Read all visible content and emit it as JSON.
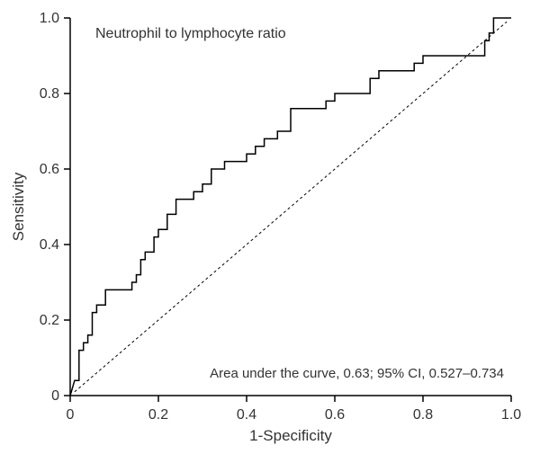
{
  "chart": {
    "type": "line",
    "title_label": "Neutrophil to lymphocyte ratio",
    "annotation_text": "Area under the curve, 0.63; 95% CI, 0.527–0.734",
    "xlabel": "1-Specificity",
    "ylabel": "Sensitivity",
    "xlim": [
      0,
      1.0
    ],
    "ylim": [
      0,
      1.0
    ],
    "xticks": [
      0,
      0.2,
      0.4,
      0.6,
      0.8,
      1.0
    ],
    "yticks": [
      0,
      0.2,
      0.4,
      0.6,
      0.8,
      1.0
    ],
    "xtick_labels": [
      "0",
      "0.2",
      "0.4",
      "0.6",
      "0.8",
      "1.0"
    ],
    "ytick_labels": [
      "0",
      "0.2",
      "0.4",
      "0.6",
      "0.8",
      "1.0"
    ],
    "tick_fontsize": 16,
    "label_fontsize": 17,
    "title_fontsize": 16,
    "annotation_fontsize": 15,
    "background_color": "#ffffff",
    "axis_color": "#000000",
    "roc_color": "#000000",
    "roc_width": 1.5,
    "ref_dash": "3,3",
    "reference_line": {
      "start": [
        0.01,
        0.01
      ],
      "end": [
        0.99,
        0.99
      ]
    },
    "roc_points": [
      [
        0.0,
        0.0
      ],
      [
        0.01,
        0.04
      ],
      [
        0.02,
        0.04
      ],
      [
        0.02,
        0.12
      ],
      [
        0.03,
        0.12
      ],
      [
        0.03,
        0.14
      ],
      [
        0.04,
        0.14
      ],
      [
        0.04,
        0.16
      ],
      [
        0.05,
        0.16
      ],
      [
        0.05,
        0.22
      ],
      [
        0.06,
        0.22
      ],
      [
        0.06,
        0.24
      ],
      [
        0.08,
        0.24
      ],
      [
        0.08,
        0.28
      ],
      [
        0.14,
        0.28
      ],
      [
        0.14,
        0.3
      ],
      [
        0.15,
        0.3
      ],
      [
        0.15,
        0.32
      ],
      [
        0.16,
        0.32
      ],
      [
        0.16,
        0.36
      ],
      [
        0.17,
        0.36
      ],
      [
        0.17,
        0.38
      ],
      [
        0.19,
        0.38
      ],
      [
        0.19,
        0.42
      ],
      [
        0.2,
        0.42
      ],
      [
        0.2,
        0.44
      ],
      [
        0.22,
        0.44
      ],
      [
        0.22,
        0.48
      ],
      [
        0.24,
        0.48
      ],
      [
        0.24,
        0.52
      ],
      [
        0.28,
        0.52
      ],
      [
        0.28,
        0.54
      ],
      [
        0.3,
        0.54
      ],
      [
        0.3,
        0.56
      ],
      [
        0.32,
        0.56
      ],
      [
        0.32,
        0.6
      ],
      [
        0.35,
        0.6
      ],
      [
        0.35,
        0.62
      ],
      [
        0.4,
        0.62
      ],
      [
        0.4,
        0.64
      ],
      [
        0.42,
        0.64
      ],
      [
        0.42,
        0.66
      ],
      [
        0.44,
        0.66
      ],
      [
        0.44,
        0.68
      ],
      [
        0.47,
        0.68
      ],
      [
        0.47,
        0.7
      ],
      [
        0.5,
        0.7
      ],
      [
        0.5,
        0.76
      ],
      [
        0.58,
        0.76
      ],
      [
        0.58,
        0.78
      ],
      [
        0.6,
        0.78
      ],
      [
        0.6,
        0.8
      ],
      [
        0.68,
        0.8
      ],
      [
        0.68,
        0.84
      ],
      [
        0.7,
        0.84
      ],
      [
        0.7,
        0.86
      ],
      [
        0.78,
        0.86
      ],
      [
        0.78,
        0.88
      ],
      [
        0.8,
        0.88
      ],
      [
        0.8,
        0.9
      ],
      [
        0.94,
        0.9
      ],
      [
        0.94,
        0.94
      ],
      [
        0.95,
        0.94
      ],
      [
        0.95,
        0.96
      ],
      [
        0.96,
        0.96
      ],
      [
        0.96,
        1.0
      ],
      [
        1.0,
        1.0
      ]
    ]
  }
}
